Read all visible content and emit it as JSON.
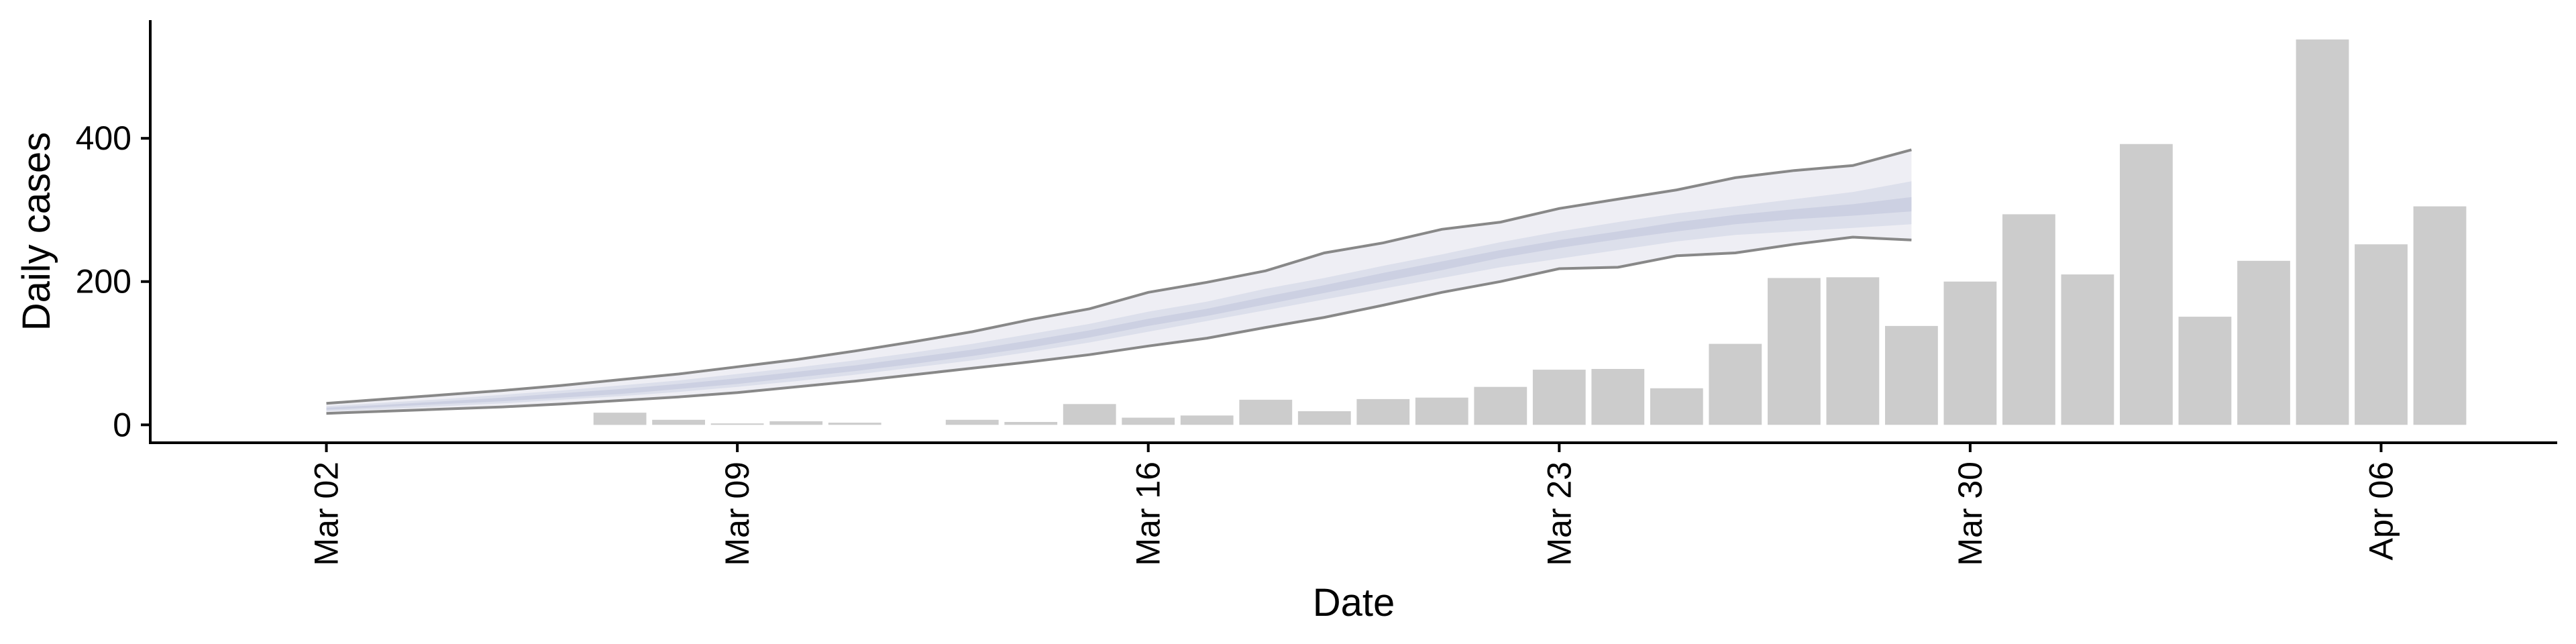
{
  "chart_data": {
    "type": "bar",
    "xlabel": "Date",
    "ylabel": "Daily cases",
    "x_ticks": [
      {
        "date": "2020-03-02",
        "label": "Mar 02"
      },
      {
        "date": "2020-03-09",
        "label": "Mar 09"
      },
      {
        "date": "2020-03-16",
        "label": "Mar 16"
      },
      {
        "date": "2020-03-23",
        "label": "Mar 23"
      },
      {
        "date": "2020-03-30",
        "label": "Mar 30"
      },
      {
        "date": "2020-04-06",
        "label": "Apr 06"
      }
    ],
    "y_ticks": [
      {
        "value": 0,
        "label": "0"
      },
      {
        "value": 200,
        "label": "200"
      },
      {
        "value": 400,
        "label": "400"
      }
    ],
    "xlim": [
      "2020-02-28",
      "2020-04-09"
    ],
    "ylim": [
      -25,
      565
    ],
    "grid": false,
    "bars": {
      "color": "#cccccc",
      "points": [
        {
          "date": "2020-03-07",
          "value": 17
        },
        {
          "date": "2020-03-08",
          "value": 7
        },
        {
          "date": "2020-03-09",
          "value": 2
        },
        {
          "date": "2020-03-10",
          "value": 5
        },
        {
          "date": "2020-03-11",
          "value": 3
        },
        {
          "date": "2020-03-13",
          "value": 7
        },
        {
          "date": "2020-03-14",
          "value": 4
        },
        {
          "date": "2020-03-15",
          "value": 29
        },
        {
          "date": "2020-03-16",
          "value": 10
        },
        {
          "date": "2020-03-17",
          "value": 13
        },
        {
          "date": "2020-03-18",
          "value": 35
        },
        {
          "date": "2020-03-19",
          "value": 19
        },
        {
          "date": "2020-03-20",
          "value": 36
        },
        {
          "date": "2020-03-21",
          "value": 38
        },
        {
          "date": "2020-03-22",
          "value": 53
        },
        {
          "date": "2020-03-23",
          "value": 77
        },
        {
          "date": "2020-03-24",
          "value": 78
        },
        {
          "date": "2020-03-25",
          "value": 51
        },
        {
          "date": "2020-03-26",
          "value": 113
        },
        {
          "date": "2020-03-27",
          "value": 205
        },
        {
          "date": "2020-03-28",
          "value": 206
        },
        {
          "date": "2020-03-29",
          "value": 138
        },
        {
          "date": "2020-03-30",
          "value": 200
        },
        {
          "date": "2020-03-31",
          "value": 294
        },
        {
          "date": "2020-04-01",
          "value": 210
        },
        {
          "date": "2020-04-02",
          "value": 392
        },
        {
          "date": "2020-04-03",
          "value": 151
        },
        {
          "date": "2020-04-04",
          "value": 229
        },
        {
          "date": "2020-04-05",
          "value": 538
        },
        {
          "date": "2020-04-06",
          "value": 252
        },
        {
          "date": "2020-04-07",
          "value": 305
        }
      ]
    },
    "bands": {
      "dates": [
        "2020-03-02",
        "2020-03-03",
        "2020-03-04",
        "2020-03-05",
        "2020-03-06",
        "2020-03-07",
        "2020-03-08",
        "2020-03-09",
        "2020-03-10",
        "2020-03-11",
        "2020-03-12",
        "2020-03-13",
        "2020-03-14",
        "2020-03-15",
        "2020-03-16",
        "2020-03-17",
        "2020-03-18",
        "2020-03-19",
        "2020-03-20",
        "2020-03-21",
        "2020-03-22",
        "2020-03-23",
        "2020-03-24",
        "2020-03-25",
        "2020-03-26",
        "2020-03-27",
        "2020-03-28",
        "2020-03-29"
      ],
      "outer": {
        "color": "#eeeef4",
        "lower": [
          16,
          19,
          22,
          25,
          29,
          34,
          39,
          45,
          53,
          61,
          70,
          79,
          88,
          98,
          110,
          121,
          136,
          150,
          167,
          185,
          200,
          218,
          220,
          236,
          240,
          252,
          262,
          258
        ],
        "upper": [
          30,
          36,
          42,
          48,
          55,
          63,
          71,
          81,
          91,
          103,
          116,
          130,
          147,
          162,
          185,
          199,
          215,
          240,
          254,
          273,
          283,
          302,
          315,
          328,
          345,
          355,
          362,
          384
        ]
      },
      "mid": {
        "color": "#dcdfeb",
        "lower": [
          19,
          22,
          26,
          30,
          35,
          40,
          46,
          53,
          61,
          70,
          80,
          90,
          102,
          115,
          130,
          145,
          160,
          175,
          190,
          205,
          220,
          232,
          244,
          256,
          265,
          270,
          275,
          280
        ],
        "upper": [
          26,
          31,
          36,
          42,
          48,
          55,
          62,
          71,
          80,
          90,
          101,
          113,
          127,
          141,
          158,
          172,
          190,
          205,
          222,
          238,
          255,
          270,
          283,
          295,
          305,
          315,
          325,
          340
        ]
      },
      "inner": {
        "color": "#ccd0e2",
        "lower": [
          21,
          25,
          29,
          33,
          38,
          43,
          50,
          57,
          66,
          75,
          85,
          96,
          108,
          122,
          138,
          152,
          168,
          184,
          200,
          216,
          233,
          247,
          259,
          270,
          280,
          287,
          292,
          298
        ],
        "upper": [
          24,
          28,
          33,
          38,
          44,
          50,
          57,
          65,
          74,
          83,
          94,
          105,
          118,
          132,
          148,
          162,
          179,
          195,
          212,
          228,
          244,
          258,
          270,
          283,
          293,
          301,
          308,
          318
        ]
      },
      "line_color": "#888888"
    }
  }
}
